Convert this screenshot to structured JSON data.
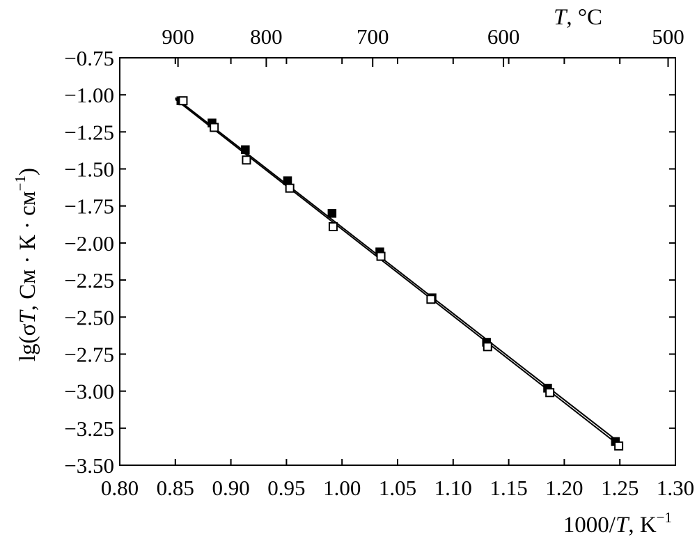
{
  "chart_data": {
    "type": "scatter",
    "title": "",
    "xlabel_parts": {
      "prefix": "1000/",
      "var": "T",
      "suffix": ", K",
      "sup": "−1"
    },
    "x2label_parts": {
      "var": "T",
      "suffix": ", °C"
    },
    "ylabel_parts": {
      "prefix": "lg(σ",
      "var": "T",
      "suffix": ", См · К · см",
      "sup": "−1",
      "close": ")"
    },
    "xlim": [
      0.8,
      1.3
    ],
    "ylim": [
      -3.5,
      -0.75
    ],
    "x_ticks": [
      0.8,
      0.85,
      0.9,
      0.95,
      1.0,
      1.05,
      1.1,
      1.15,
      1.2,
      1.25,
      1.3
    ],
    "x_tick_labels": [
      "0.80",
      "0.85",
      "0.90",
      "0.95",
      "1.00",
      "1.05",
      "1.10",
      "1.15",
      "1.20",
      "1.25",
      "1.30"
    ],
    "y_ticks": [
      -0.75,
      -1.0,
      -1.25,
      -1.5,
      -1.75,
      -2.0,
      -2.25,
      -2.5,
      -2.75,
      -3.0,
      -3.25,
      -3.5
    ],
    "y_tick_labels": [
      "−0.75",
      "−1.00",
      "−1.25",
      "−1.50",
      "−1.75",
      "−2.00",
      "−2.25",
      "−2.50",
      "−2.75",
      "−3.00",
      "−3.25",
      "−3.50"
    ],
    "x2_ticks_celsius": [
      900,
      800,
      700,
      600,
      500
    ],
    "x2_tick_labels": [
      "900",
      "800",
      "700",
      "600",
      "500"
    ],
    "grid": false,
    "legend": "none",
    "series": [
      {
        "marker": "filled-square",
        "x": [
          0.855,
          0.883,
          0.913,
          0.951,
          0.991,
          1.034,
          1.081,
          1.13,
          1.185,
          1.246
        ],
        "y": [
          -1.04,
          -1.19,
          -1.37,
          -1.58,
          -1.8,
          -2.06,
          -2.37,
          -2.67,
          -2.98,
          -3.34
        ],
        "fit": {
          "x": [
            0.85,
            1.25
          ],
          "y": [
            -1.02,
            -3.35
          ]
        }
      },
      {
        "marker": "open-square",
        "x": [
          0.857,
          0.885,
          0.914,
          0.953,
          0.992,
          1.035,
          1.08,
          1.131,
          1.187,
          1.249
        ],
        "y": [
          -1.04,
          -1.22,
          -1.44,
          -1.63,
          -1.89,
          -2.09,
          -2.38,
          -2.7,
          -3.01,
          -3.37
        ],
        "fit": {
          "x": [
            0.85,
            1.25
          ],
          "y": [
            -1.03,
            -3.37
          ]
        }
      }
    ]
  }
}
